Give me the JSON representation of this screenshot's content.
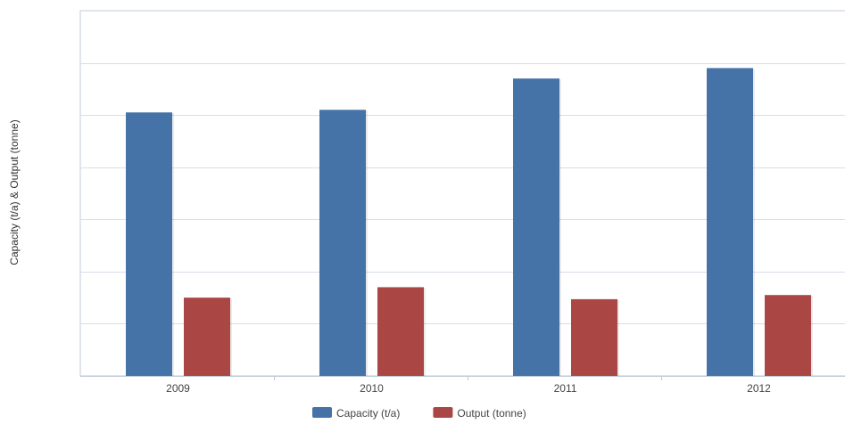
{
  "chart_data": {
    "type": "bar",
    "title": "",
    "xlabel": "",
    "ylabel": "Capacity (t/a) & Output (tonne)",
    "categories": [
      "2009",
      "2010",
      "2011",
      "2012"
    ],
    "series": [
      {
        "name": "Capacity (t/a)",
        "color": "#4572A7",
        "values": [
          5.05,
          5.1,
          5.7,
          5.9
        ]
      },
      {
        "name": "Output (tonne)",
        "color": "#AA4643",
        "values": [
          1.5,
          1.7,
          1.47,
          1.55
        ]
      }
    ],
    "ylim": [
      0,
      7
    ],
    "grid": true,
    "legend_position": "bottom"
  }
}
